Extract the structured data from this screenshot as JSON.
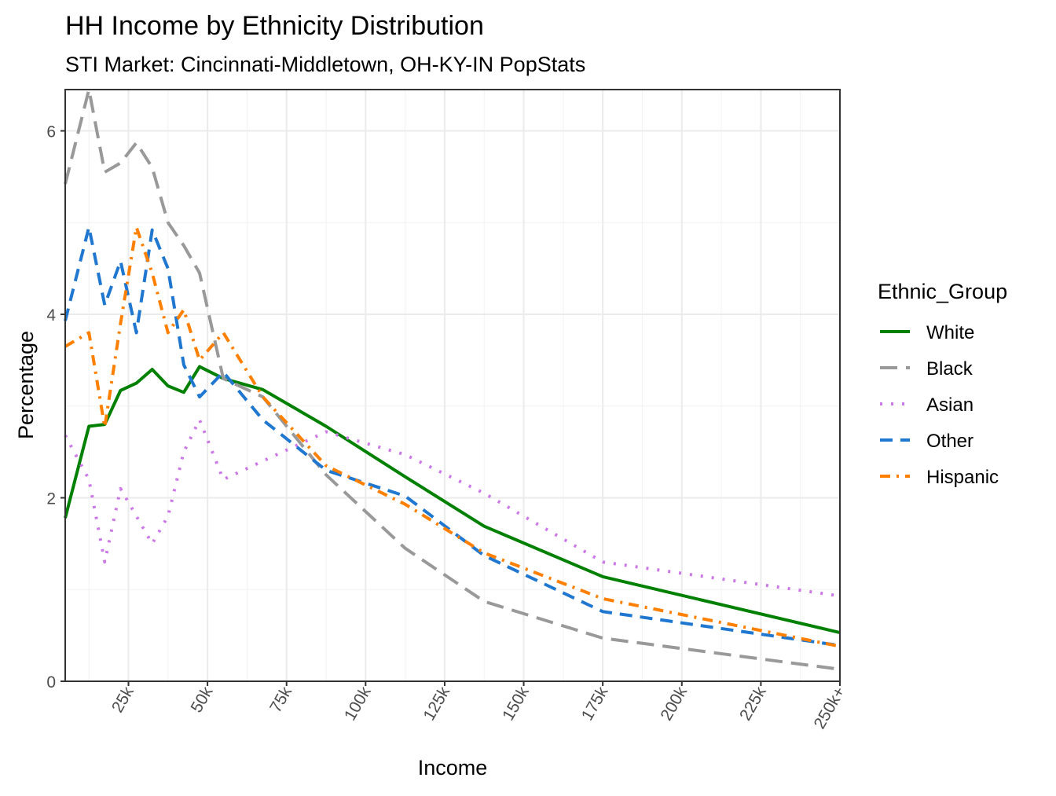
{
  "chart_data": {
    "type": "line",
    "title": "HH Income by Ethnicity Distribution",
    "subtitle": "STI Market: Cincinnati-Middletown, OH-KY-IN PopStats",
    "xlabel": "Income",
    "ylabel": "Percentage",
    "x_ticks": [
      {
        "value": 25000,
        "label": "25k"
      },
      {
        "value": 50000,
        "label": "50k"
      },
      {
        "value": 75000,
        "label": "75k"
      },
      {
        "value": 100000,
        "label": "100k"
      },
      {
        "value": 125000,
        "label": "125k"
      },
      {
        "value": 150000,
        "label": "150k"
      },
      {
        "value": 175000,
        "label": "175k"
      },
      {
        "value": 200000,
        "label": "200k"
      },
      {
        "value": 225000,
        "label": "225k"
      },
      {
        "value": 250000,
        "label": "250k+"
      }
    ],
    "y_ticks": [
      0,
      2,
      4,
      6
    ],
    "xlim": [
      5000,
      250000
    ],
    "ylim": [
      0,
      6.45
    ],
    "grid": true,
    "legend": {
      "title": "Ethnic_Group",
      "position": "right"
    },
    "series": [
      {
        "name": "White",
        "color": "#008000",
        "dash": "solid",
        "points": [
          [
            5000,
            1.78
          ],
          [
            12500,
            2.78
          ],
          [
            17500,
            2.8
          ],
          [
            22500,
            3.17
          ],
          [
            27500,
            3.25
          ],
          [
            32500,
            3.4
          ],
          [
            37500,
            3.22
          ],
          [
            42500,
            3.15
          ],
          [
            47500,
            3.43
          ],
          [
            55000,
            3.3
          ],
          [
            67500,
            3.18
          ],
          [
            87500,
            2.78
          ],
          [
            112500,
            2.23
          ],
          [
            137500,
            1.69
          ],
          [
            175000,
            1.14
          ],
          [
            250000,
            0.53
          ]
        ]
      },
      {
        "name": "Black",
        "color": "#999999",
        "dash": "longdash",
        "points": [
          [
            5000,
            5.42
          ],
          [
            12500,
            6.45
          ],
          [
            17500,
            5.55
          ],
          [
            22500,
            5.65
          ],
          [
            27500,
            5.87
          ],
          [
            32500,
            5.6
          ],
          [
            37500,
            5.0
          ],
          [
            42500,
            4.75
          ],
          [
            47500,
            4.45
          ],
          [
            55000,
            3.3
          ],
          [
            67500,
            3.1
          ],
          [
            87500,
            2.25
          ],
          [
            112500,
            1.45
          ],
          [
            137500,
            0.87
          ],
          [
            175000,
            0.47
          ],
          [
            250000,
            0.13
          ]
        ]
      },
      {
        "name": "Asian",
        "color": "#CC79E8",
        "dash": "dotted",
        "points": [
          [
            5000,
            2.68
          ],
          [
            12500,
            2.2
          ],
          [
            17500,
            1.3
          ],
          [
            22500,
            2.1
          ],
          [
            27500,
            1.8
          ],
          [
            32500,
            1.5
          ],
          [
            37500,
            1.8
          ],
          [
            42500,
            2.5
          ],
          [
            47500,
            2.85
          ],
          [
            55000,
            2.2
          ],
          [
            67500,
            2.4
          ],
          [
            87500,
            2.72
          ],
          [
            112500,
            2.47
          ],
          [
            137500,
            2.05
          ],
          [
            175000,
            1.3
          ],
          [
            250000,
            0.93
          ]
        ]
      },
      {
        "name": "Other",
        "color": "#1F77D0",
        "dash": "dashed",
        "points": [
          [
            5000,
            3.93
          ],
          [
            12500,
            4.95
          ],
          [
            17500,
            4.1
          ],
          [
            22500,
            4.58
          ],
          [
            27500,
            3.8
          ],
          [
            32500,
            4.92
          ],
          [
            37500,
            4.5
          ],
          [
            42500,
            3.45
          ],
          [
            47500,
            3.1
          ],
          [
            55000,
            3.37
          ],
          [
            67500,
            2.85
          ],
          [
            87500,
            2.3
          ],
          [
            112500,
            2.02
          ],
          [
            137500,
            1.37
          ],
          [
            175000,
            0.76
          ],
          [
            250000,
            0.39
          ]
        ]
      },
      {
        "name": "Hispanic",
        "color": "#FF8000",
        "dash": "dotdash",
        "points": [
          [
            5000,
            3.65
          ],
          [
            12500,
            3.8
          ],
          [
            17500,
            2.77
          ],
          [
            22500,
            3.9
          ],
          [
            27500,
            4.95
          ],
          [
            32500,
            4.45
          ],
          [
            37500,
            3.8
          ],
          [
            42500,
            4.05
          ],
          [
            47500,
            3.5
          ],
          [
            55000,
            3.8
          ],
          [
            67500,
            3.1
          ],
          [
            87500,
            2.35
          ],
          [
            112500,
            1.93
          ],
          [
            137500,
            1.4
          ],
          [
            175000,
            0.9
          ],
          [
            250000,
            0.38
          ]
        ]
      }
    ]
  }
}
